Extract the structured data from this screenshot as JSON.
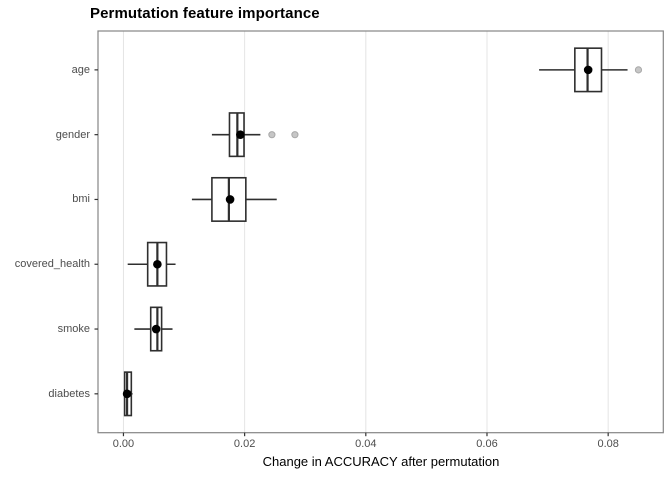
{
  "title": "Permutation feature importance",
  "chart_data": {
    "type": "boxplot",
    "orientation": "horizontal",
    "title": "Permutation feature importance",
    "xlabel": "Change in ACCURACY after permutation",
    "ylabel": "",
    "x_range": [
      -0.0042,
      0.0891
    ],
    "x_ticks": [
      {
        "value": 0.0,
        "label": "0.00"
      },
      {
        "value": 0.02,
        "label": "0.02"
      },
      {
        "value": 0.04,
        "label": "0.04"
      },
      {
        "value": 0.06,
        "label": "0.06"
      },
      {
        "value": 0.08,
        "label": "0.08"
      }
    ],
    "grid": "major-vertical-only",
    "legend": "none",
    "categories": [
      "age",
      "gender",
      "bmi",
      "covered_health",
      "smoke",
      "diabetes"
    ],
    "series": [
      {
        "name": "age",
        "whisker_low": 0.0686,
        "q1": 0.0745,
        "median": 0.0766,
        "q3": 0.0789,
        "whisker_high": 0.0832,
        "mean": 0.0767,
        "outliers": [
          0.085
        ]
      },
      {
        "name": "gender",
        "whisker_low": 0.0146,
        "q1": 0.0175,
        "median": 0.0188,
        "q3": 0.0199,
        "whisker_high": 0.0226,
        "mean": 0.0193,
        "outliers": [
          0.0245,
          0.0283
        ]
      },
      {
        "name": "bmi",
        "whisker_low": 0.0113,
        "q1": 0.0146,
        "median": 0.0174,
        "q3": 0.0202,
        "whisker_high": 0.0253,
        "mean": 0.0176,
        "outliers": []
      },
      {
        "name": "covered_health",
        "whisker_low": 0.0007,
        "q1": 0.004,
        "median": 0.0056,
        "q3": 0.0071,
        "whisker_high": 0.0086,
        "mean": 0.0056,
        "outliers": []
      },
      {
        "name": "smoke",
        "whisker_low": 0.0018,
        "q1": 0.0045,
        "median": 0.0056,
        "q3": 0.0063,
        "whisker_high": 0.0081,
        "mean": 0.0054,
        "outliers": []
      },
      {
        "name": "diabetes",
        "whisker_low": 0.0,
        "q1": 0.0002,
        "median": 0.0006,
        "q3": 0.0013,
        "whisker_high": 0.0015,
        "mean": 0.0006,
        "outliers": []
      }
    ],
    "colors": {
      "box_stroke": "#2f2f2f",
      "box_fill": "#ffffff",
      "mean_dot": "#000000",
      "outlier_fill": "#c6c6c6",
      "outlier_stroke": "#a8a8a8",
      "gridline": "#e4e4e4",
      "panel_border": "#858585",
      "tick_mark": "#333333",
      "tick_text": "#4d4d4d",
      "title_text": "#000000"
    }
  }
}
